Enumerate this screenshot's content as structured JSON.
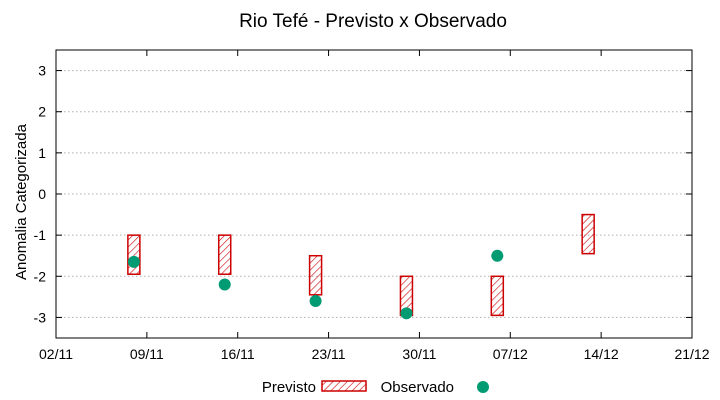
{
  "chart_data": {
    "type": "range-bar-with-scatter",
    "title": "Rio Tefé - Previsto x Observado",
    "ylabel": "Anomalia Categorizada",
    "xlabel": "",
    "x_ticks": [
      "02/11",
      "09/11",
      "16/11",
      "23/11",
      "30/11",
      "07/12",
      "14/12",
      "21/12"
    ],
    "x_range_days": [
      0,
      49
    ],
    "ylim": [
      -3.5,
      3.5
    ],
    "y_ticks": [
      "-3",
      "-2",
      "-1",
      "0",
      "1",
      "2",
      "3"
    ],
    "grid": true,
    "legend_position": "bottom",
    "series": [
      {
        "name": "Previsto",
        "kind": "range",
        "color": "#cc0000",
        "points": [
          {
            "date": "08/11",
            "low": -1.95,
            "high": -1.0
          },
          {
            "date": "15/11",
            "low": -1.95,
            "high": -1.0
          },
          {
            "date": "22/11",
            "low": -2.45,
            "high": -1.5
          },
          {
            "date": "29/11",
            "low": -2.95,
            "high": -2.0
          },
          {
            "date": "06/12",
            "low": -2.95,
            "high": -2.0
          },
          {
            "date": "13/12",
            "low": -1.45,
            "high": -0.5
          }
        ]
      },
      {
        "name": "Observado",
        "kind": "point",
        "color": "#009a73",
        "points": [
          {
            "date": "08/11",
            "value": -1.65
          },
          {
            "date": "15/11",
            "value": -2.2
          },
          {
            "date": "22/11",
            "value": -2.6
          },
          {
            "date": "29/11",
            "value": -2.9
          },
          {
            "date": "06/12",
            "value": -1.5
          }
        ]
      }
    ]
  }
}
